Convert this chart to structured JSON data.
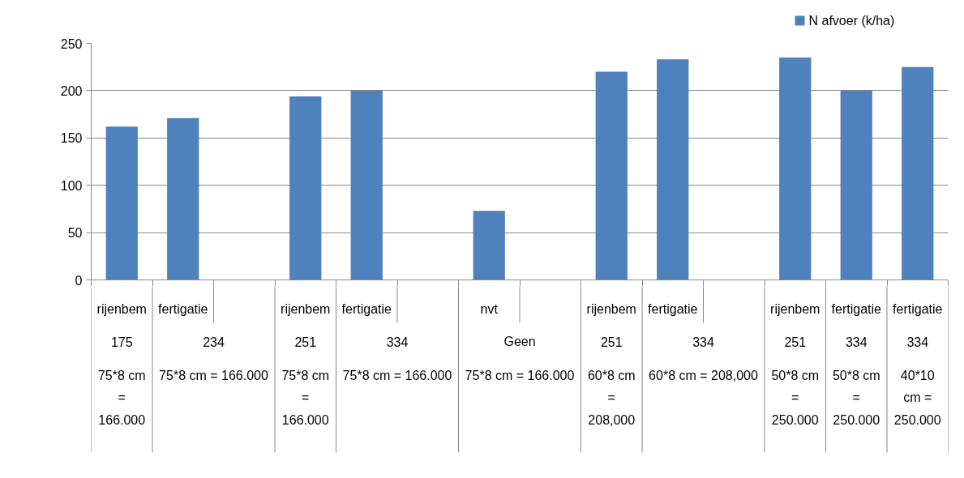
{
  "chart_data": {
    "type": "bar",
    "categories": [
      "rijenbem\n175\n75*8 cm = 166.000",
      "fertigatie\n234\n75*8 cm = 166.000",
      null,
      "rijenbem\n251\n75*8 cm = 166.000",
      "fertigatie\n334\n75*8 cm = 166.000",
      null,
      "nvt\nGeen\n75*8 cm = 166.000",
      null,
      "rijenbem\n251\n60*8 cm = 208,000",
      "fertigatie\n334\n60*8 cm = 208,000",
      null,
      "rijenbem\n251\n50*8 cm = 250.000",
      "fertigatie\n334\n50*8 cm = 250.000",
      "fertigatie\n334\n40*10 cm = 250.000"
    ],
    "series": [
      {
        "name": "N afvoer (k/ha)",
        "color": "#4f81bd",
        "values": [
          162,
          171,
          null,
          194,
          200,
          null,
          73,
          null,
          220,
          233,
          null,
          235,
          200,
          225
        ]
      }
    ],
    "ylim": [
      0,
      250
    ],
    "yticks": [
      0,
      50,
      100,
      150,
      200,
      250
    ],
    "grid": "y",
    "legend": "top right"
  }
}
